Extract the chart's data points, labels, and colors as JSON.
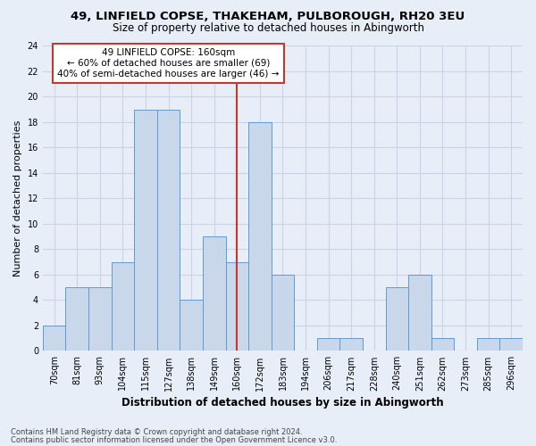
{
  "title1": "49, LINFIELD COPSE, THAKEHAM, PULBOROUGH, RH20 3EU",
  "title2": "Size of property relative to detached houses in Abingworth",
  "xlabel": "Distribution of detached houses by size in Abingworth",
  "ylabel": "Number of detached properties",
  "categories": [
    "70sqm",
    "81sqm",
    "93sqm",
    "104sqm",
    "115sqm",
    "127sqm",
    "138sqm",
    "149sqm",
    "160sqm",
    "172sqm",
    "183sqm",
    "194sqm",
    "206sqm",
    "217sqm",
    "228sqm",
    "240sqm",
    "251sqm",
    "262sqm",
    "273sqm",
    "285sqm",
    "296sqm"
  ],
  "values": [
    2,
    5,
    5,
    7,
    19,
    19,
    4,
    9,
    7,
    18,
    6,
    0,
    1,
    1,
    0,
    5,
    6,
    1,
    0,
    1,
    1
  ],
  "bar_color": "#c8d8ea",
  "bar_edgecolor": "#5b9bd5",
  "grid_color": "#c8d4e8",
  "vline_x": 8,
  "vline_color": "#c0392b",
  "annotation_title": "49 LINFIELD COPSE: 160sqm",
  "annotation_line1": "← 60% of detached houses are smaller (69)",
  "annotation_line2": "40% of semi-detached houses are larger (46) →",
  "annotation_box_facecolor": "#ffffff",
  "annotation_box_edgecolor": "#c0392b",
  "ylim": [
    0,
    24
  ],
  "yticks": [
    0,
    2,
    4,
    6,
    8,
    10,
    12,
    14,
    16,
    18,
    20,
    22,
    24
  ],
  "footer1": "Contains HM Land Registry data © Crown copyright and database right 2024.",
  "footer2": "Contains public sector information licensed under the Open Government Licence v3.0.",
  "bg_color": "#e8eef8",
  "plot_bg_color": "#e8eef8",
  "title1_fontsize": 9.5,
  "title2_fontsize": 8.5,
  "xlabel_fontsize": 8.5,
  "ylabel_fontsize": 8,
  "tick_fontsize": 7,
  "ann_fontsize": 7.5,
  "footer_fontsize": 6
}
